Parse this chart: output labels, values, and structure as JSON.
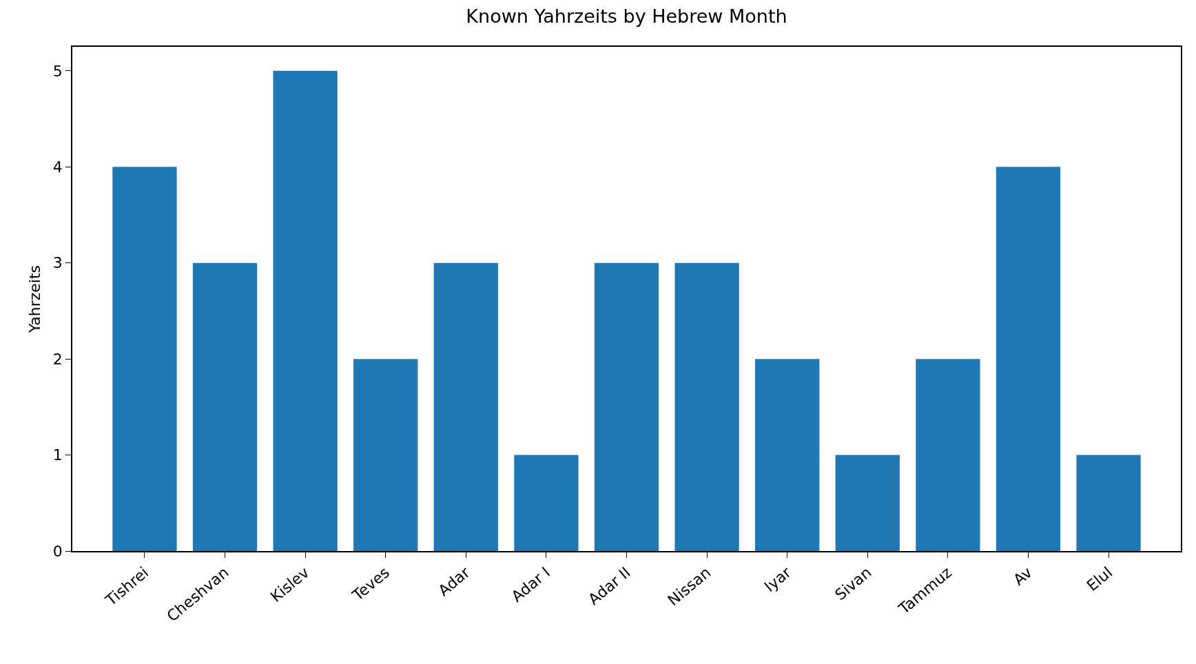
{
  "chart_data": {
    "type": "bar",
    "title": "Known Yahrzeits by Hebrew Month",
    "ylabel": "Yahrzeits",
    "categories": [
      "Tishrei",
      "Cheshvan",
      "Kislev",
      "Teves",
      "Adar",
      "Adar I",
      "Adar II",
      "Nissan",
      "Iyar",
      "Sivan",
      "Tammuz",
      "Av",
      "Elul"
    ],
    "values": [
      4,
      3,
      5,
      2,
      3,
      1,
      3,
      3,
      2,
      1,
      2,
      4,
      1
    ],
    "color": "#1f77b4",
    "ylim": [
      0,
      5.25
    ],
    "yticks": [
      0,
      1,
      2,
      3,
      4,
      5
    ],
    "grid": false,
    "legend": false
  }
}
